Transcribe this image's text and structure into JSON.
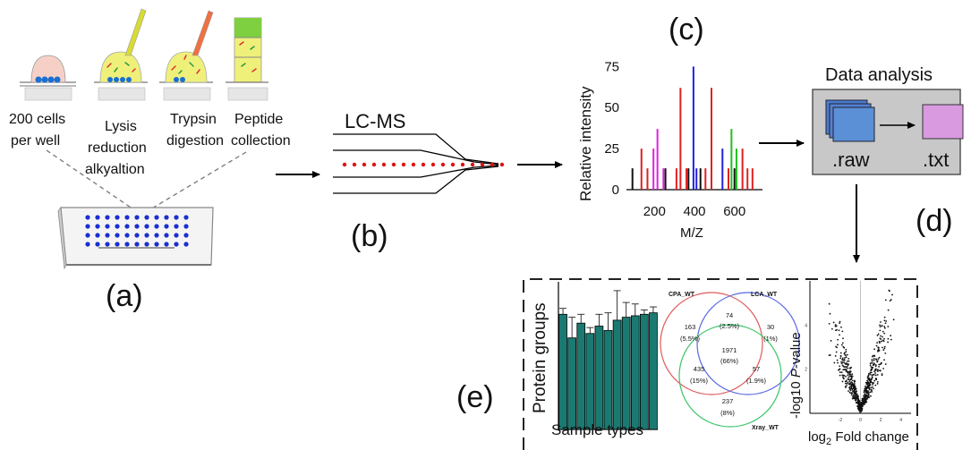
{
  "panels": {
    "a": {
      "label": "(a)",
      "steps": [
        {
          "lines": [
            "200 cells",
            "per well"
          ]
        },
        {
          "lines": [
            "Lysis",
            "reduction",
            "alkyaltion"
          ]
        },
        {
          "lines": [
            "Trypsin",
            "digestion"
          ]
        },
        {
          "lines": [
            "Peptide",
            "collection"
          ]
        }
      ]
    },
    "b": {
      "label": "(b)",
      "title": "LC-MS"
    },
    "c": {
      "label": "(c)",
      "ylabel": "Relative intensity",
      "xlabel": "M/Z",
      "yticks": [
        "75",
        "50",
        "25",
        "0"
      ],
      "xticks": [
        "200",
        "400",
        "600"
      ]
    },
    "d": {
      "label": "(d)",
      "title": "Data analysis",
      "raw_label": ".raw",
      "txt_label": ".txt"
    },
    "e": {
      "label": "(e)",
      "bar_ylabel": "Protein groups",
      "bar_xlabel": "Sample types",
      "venn": {
        "set_a": "CPA_WT",
        "set_b": "LCA_WT",
        "set_c": "Xray_WT",
        "regions": [
          {
            "count": "163",
            "pct": "(5.5%)"
          },
          {
            "count": "74",
            "pct": "(2.5%)"
          },
          {
            "count": "30",
            "pct": "(1%)"
          },
          {
            "count": "1971",
            "pct": "(66%)"
          },
          {
            "count": "435",
            "pct": "(15%)"
          },
          {
            "count": "57",
            "pct": "(1.9%)"
          },
          {
            "count": "237",
            "pct": "(8%)"
          }
        ]
      },
      "volcano_ylabel_prefix": "-log10 ",
      "volcano_ylabel_italic": "P",
      "volcano_ylabel_suffix": "-value",
      "volcano_xlabel_prefix": "log",
      "volcano_xlabel_sub": "2",
      "volcano_xlabel_suffix": " Fold change"
    }
  },
  "colors": {
    "bar_fill": "#1a7a72",
    "venn_a": "#e05a5a",
    "venn_b": "#5a6ae0",
    "venn_c": "#3cc46a",
    "plate_dot": "#1a2fd0",
    "lc_dot": "#e01010",
    "raw_file": "#5b8fd6",
    "txt_file": "#d99ae0",
    "analysis_box": "#c8c8c8"
  },
  "chart_data": [
    {
      "type": "bar",
      "name": "spectrum",
      "xlim": [
        60,
        740
      ],
      "ylim": [
        0,
        85
      ],
      "series": [
        {
          "color": "#111111",
          "x": [
            90,
            255,
            370,
            430,
            600
          ],
          "values": [
            13,
            13,
            13,
            13,
            13
          ]
        },
        {
          "color": "#e02020",
          "x": [
            135,
            165,
            310,
            330,
            360,
            455,
            485,
            570,
            640,
            665,
            690
          ],
          "values": [
            25,
            13,
            13,
            62,
            13,
            13,
            62,
            13,
            25,
            13,
            13
          ]
        },
        {
          "color": "#e020e0",
          "x": [
            195,
            215,
            245
          ],
          "values": [
            25,
            37,
            13
          ]
        },
        {
          "color": "#2020e0",
          "x": [
            395,
            410,
            540
          ],
          "values": [
            75,
            13,
            25
          ]
        },
        {
          "color": "#20c020",
          "x": [
            585,
            610
          ],
          "values": [
            37,
            25
          ]
        }
      ]
    },
    {
      "type": "bar",
      "name": "protein-groups",
      "ylim": [
        0,
        100
      ],
      "values": [
        78,
        62,
        72,
        65,
        70,
        67,
        74,
        76,
        77,
        78,
        79
      ],
      "errors": [
        4,
        14,
        6,
        4,
        8,
        12,
        20,
        10,
        8,
        3,
        4
      ]
    },
    {
      "type": "scatter",
      "name": "volcano",
      "xlim": [
        -5,
        5
      ],
      "ylim": [
        0,
        6
      ],
      "xticks": [
        "-2",
        "0",
        "2",
        "4"
      ],
      "yticks": [
        "4",
        "2"
      ]
    }
  ]
}
